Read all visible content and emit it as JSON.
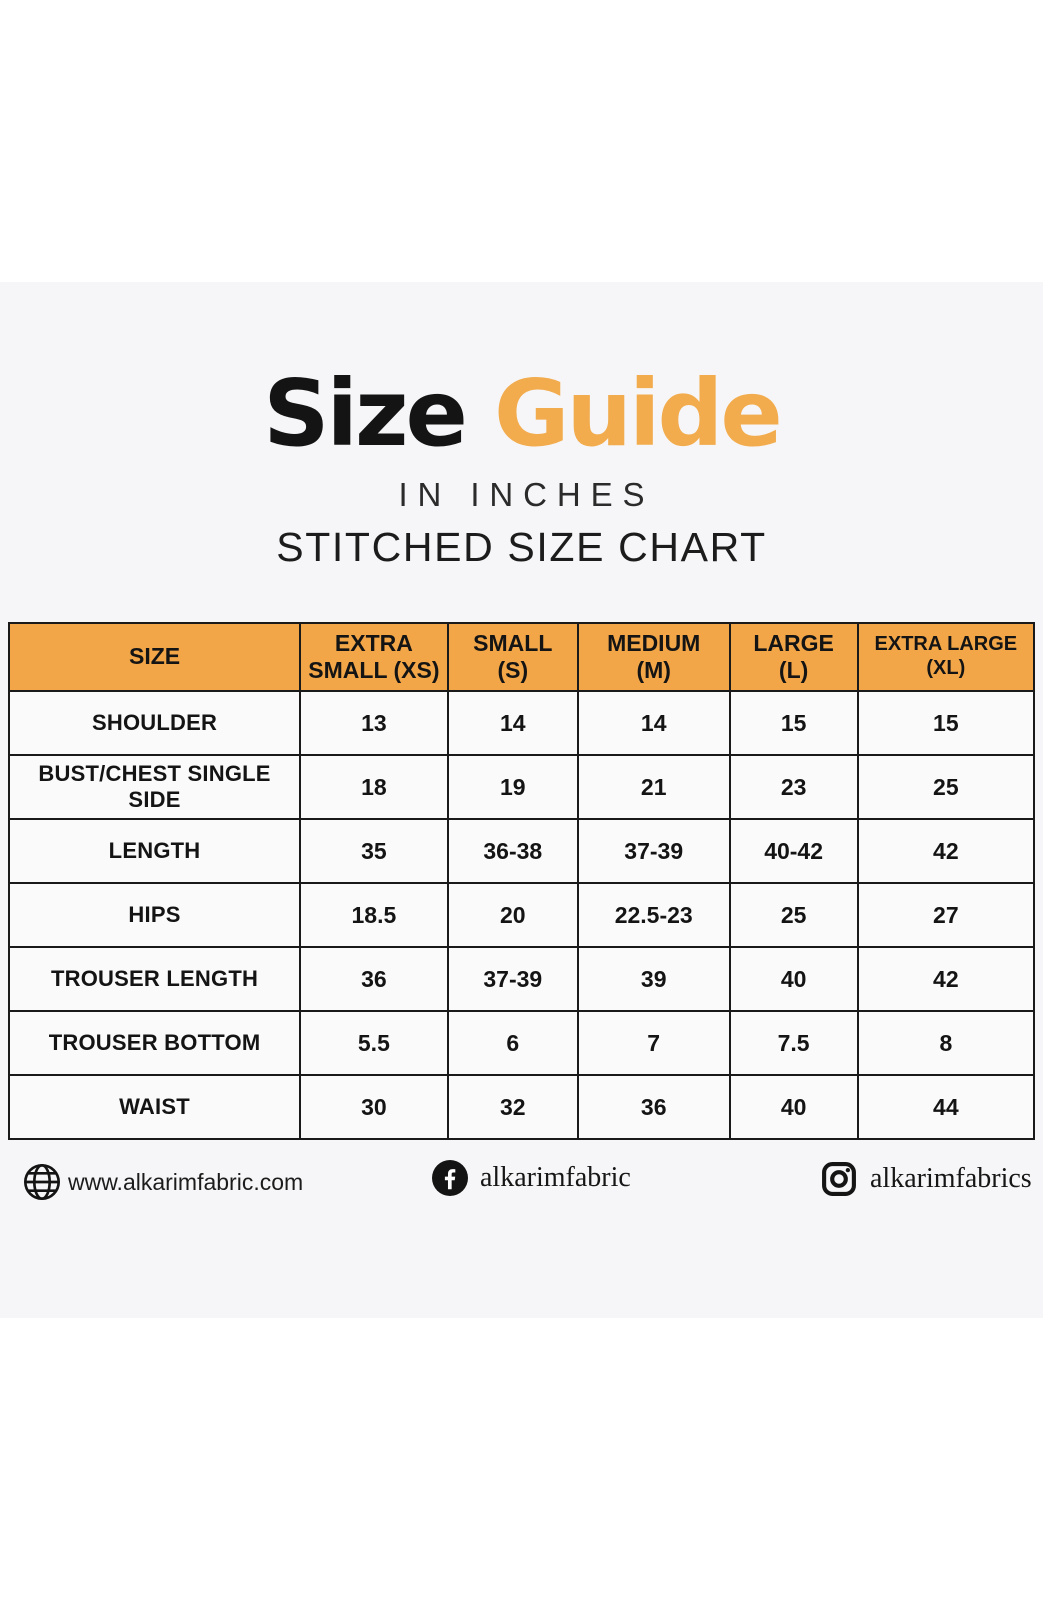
{
  "title_parts": {
    "black": "Size",
    "orange": "Guide"
  },
  "subtitle_inches": "IN INCHES",
  "subtitle_stitched": "STITCHED SIZE CHART",
  "chart_data": {
    "type": "table",
    "title": "Size Guide",
    "subtitle": [
      "IN INCHES",
      "STITCHED SIZE CHART"
    ],
    "units": "inches",
    "columns": [
      "SIZE",
      "EXTRA SMALL (XS)",
      "SMALL (S)",
      "MEDIUM (M)",
      "LARGE (L)",
      "EXTRA LARGE (XL)"
    ],
    "columns_lines": [
      [
        "SIZE"
      ],
      [
        "EXTRA",
        "SMALL (XS)"
      ],
      [
        "SMALL",
        "(S)"
      ],
      [
        "MEDIUM",
        "(M)"
      ],
      [
        "LARGE",
        "(L)"
      ],
      [
        "EXTRA LARGE",
        "(XL)"
      ]
    ],
    "rows": [
      {
        "label": "SHOULDER",
        "values": [
          "13",
          "14",
          "14",
          "15",
          "15"
        ]
      },
      {
        "label": "BUST/CHEST SINGLE SIDE",
        "values": [
          "18",
          "19",
          "21",
          "23",
          "25"
        ]
      },
      {
        "label": "LENGTH",
        "values": [
          "35",
          "36-38",
          "37-39",
          "40-42",
          "42"
        ]
      },
      {
        "label": "HIPS",
        "values": [
          "18.5",
          "20",
          "22.5-23",
          "25",
          "27"
        ]
      },
      {
        "label": "TROUSER LENGTH",
        "values": [
          "36",
          "37-39",
          "39",
          "40",
          "42"
        ]
      },
      {
        "label": "TROUSER BOTTOM",
        "values": [
          "5.5",
          "6",
          "7",
          "7.5",
          "8"
        ]
      },
      {
        "label": "WAIST",
        "values": [
          "30",
          "32",
          "36",
          "40",
          "44"
        ]
      }
    ]
  },
  "footer": {
    "website": "www.alkarimfabric.com",
    "facebook_handle": "alkarimfabric",
    "instagram_handle": "alkarimfabrics"
  },
  "colors": {
    "accent_orange_header": "#F2A648",
    "accent_orange_title": "#F2AC4E",
    "text_black": "#141414",
    "canvas_bg": "#f6f6f8",
    "cell_bg": "#fafafb",
    "border": "#1a1a1a"
  }
}
